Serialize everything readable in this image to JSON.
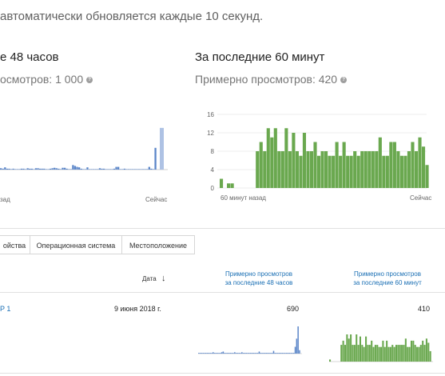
{
  "notice": "автоматически обновляется каждые 10 секунд.",
  "panel48": {
    "title": "е 48 часов",
    "subtitle": "осмотров: 1 000",
    "x_left": "зад",
    "x_right": "Сейчас"
  },
  "panel60": {
    "title": "За последние 60 минут",
    "subtitle": "Примерно просмотров: 420",
    "x_left": "60 минут назад",
    "x_right": "Сейчас",
    "yticks": [
      "16",
      "12",
      "8",
      "4",
      "0"
    ]
  },
  "icons": {
    "help": "help-circle-icon",
    "sort": "arrow-down-icon"
  },
  "tabs": [
    "ойства",
    "Операционная система",
    "Местоположение"
  ],
  "table": {
    "col_date": "Дата",
    "col_48_line1": "Примерно просмотров",
    "col_48_line2": "за последние 48 часов",
    "col_60_line1": "Примерно просмотров",
    "col_60_line2": "за последние 60 минут",
    "row": {
      "name": "P 1",
      "date": "9 июня 2018 г.",
      "views48": "690",
      "views60": "410"
    }
  },
  "colors": {
    "blue": "#5b86c9",
    "blue_light": "#aec2e4",
    "green": "#6aa84f",
    "link": "#1a6fb4"
  },
  "chart_data": [
    {
      "type": "bar",
      "title": "е 48 часов",
      "x_labels": [
        "зад",
        "Сейчас"
      ],
      "values": [
        0.3,
        0.2,
        0.5,
        0.2,
        0.2,
        0.1,
        0.2,
        0.1,
        0.1,
        0.1,
        0.2,
        0.2,
        0.1,
        0.3,
        0.2,
        0.2,
        0.1,
        0.3,
        0.3,
        0.2,
        0.2,
        0.2,
        0.1,
        0.1,
        0.2,
        0.3,
        0.4,
        0.3,
        0.2,
        0.1,
        0.4,
        0.4,
        0.2,
        0.1,
        0.1,
        1.0,
        0.8,
        0.6,
        0.5,
        0.2,
        0.1,
        0.1,
        0.5,
        0.1,
        0.1,
        0.1,
        0.1,
        0.1,
        0.3,
        0.2,
        0.2,
        0.1,
        0.1,
        0.1,
        0.1,
        0.2,
        0.6,
        0.6,
        0.1,
        0.1,
        0.2,
        0.1,
        0.1,
        0.1,
        0.1,
        0.1,
        0.1,
        0.1,
        0.1,
        0.1,
        0.1,
        0.1,
        0.6,
        0.2,
        0.1,
        4.8
      ],
      "last_value": 9.2
    },
    {
      "type": "bar",
      "title": "За последние 60 минут",
      "x_labels": [
        "60 минут назад",
        "Сейчас"
      ],
      "ylim": [
        0,
        16
      ],
      "yticks": [
        0,
        4,
        8,
        12,
        16
      ],
      "values": [
        2,
        0,
        1,
        1,
        0,
        0,
        0,
        0,
        0,
        0,
        8,
        10,
        8,
        13,
        11,
        13,
        8,
        8,
        13,
        8,
        12,
        8,
        7,
        12,
        8,
        8,
        10,
        7,
        8,
        8,
        7,
        7,
        10,
        7,
        10,
        7,
        7,
        8,
        7,
        8,
        8,
        8,
        8,
        8,
        11,
        7,
        7,
        10,
        10,
        8,
        7,
        7,
        8,
        10,
        8,
        11,
        9,
        5
      ],
      "highlight_last": 5
    },
    {
      "type": "bar",
      "title": "row-sparkline-48h",
      "values": [
        0.1,
        0.1,
        0.1,
        0.1,
        0.1,
        0.1,
        0.1,
        0.1,
        0.1,
        0.1,
        0.2,
        0.1,
        0.1,
        0.1,
        0.1,
        0.1,
        0.2,
        0.3,
        0.1,
        0.1,
        0.1,
        0.1,
        0.1,
        0.1,
        0.1,
        0.2,
        0.1,
        0.1,
        0.1,
        0.1,
        0.2,
        0.1,
        0.1,
        0.1,
        0.1,
        0.1,
        0.1,
        0.1,
        0.1,
        0.1,
        0.1,
        0.1,
        0.3,
        0.1,
        0.1,
        0.1,
        0.1,
        0.1,
        0.1,
        0.1,
        0.1,
        0.1,
        0.4,
        0.1,
        0.1,
        0.1,
        0.1,
        0.1,
        0.1,
        0.1,
        0.1,
        0.1,
        0.1,
        0.1,
        0.1,
        0.1,
        0.1,
        1.0,
        2.2,
        4.0,
        0.5
      ]
    },
    {
      "type": "bar",
      "title": "row-sparkline-60m",
      "values": [
        1,
        0,
        0,
        0,
        0,
        0,
        8,
        10,
        8,
        13,
        11,
        13,
        8,
        8,
        13,
        8,
        12,
        8,
        7,
        12,
        8,
        8,
        10,
        7,
        8,
        8,
        7,
        7,
        10,
        7,
        10,
        7,
        7,
        8,
        7,
        8,
        8,
        8,
        8,
        8,
        11,
        7,
        7,
        10,
        10,
        8,
        7,
        7,
        8,
        10,
        8,
        11,
        9,
        5
      ]
    }
  ]
}
